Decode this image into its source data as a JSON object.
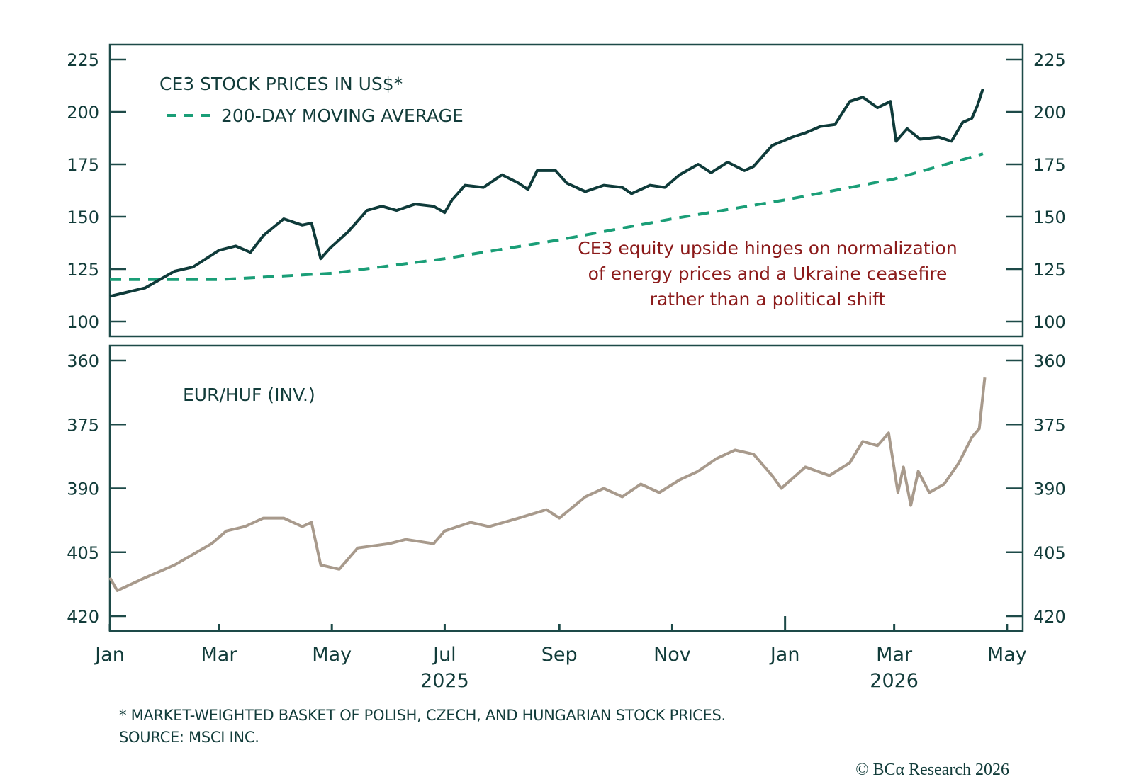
{
  "chart_data": [
    {
      "type": "line",
      "panel": "top",
      "title": "CE3 STOCK PRICES IN US$*",
      "legend": [
        {
          "name": "CE3 STOCK PRICES IN US$*",
          "style": "solid",
          "color": "#0f3b3a"
        },
        {
          "name": "200-DAY MOVING AVERAGE",
          "style": "dashed",
          "color": "#1a9e77"
        }
      ],
      "legend_position": "top-left",
      "ylim": [
        100,
        225
      ],
      "yticks": [
        "225",
        "200",
        "175",
        "150",
        "125",
        "100"
      ],
      "ytick_values": [
        225,
        200,
        175,
        150,
        125,
        100
      ],
      "x_unit": "days since 2025-01-01",
      "series": [
        {
          "name": "CE3 STOCK PRICES IN US$",
          "color": "#0f3b3a",
          "x": [
            0,
            19,
            35,
            45,
            59,
            68,
            76,
            83,
            94,
            104,
            109,
            114,
            119,
            129,
            139,
            147,
            155,
            165,
            175,
            181,
            185,
            192,
            202,
            212,
            221,
            226,
            231,
            241,
            247,
            257,
            267,
            277,
            282,
            292,
            300,
            308,
            318,
            325,
            334,
            343,
            348,
            358,
            369,
            376,
            384,
            392,
            400,
            407,
            415,
            422,
            425,
            431,
            438,
            448,
            455,
            461,
            466,
            469,
            472
          ],
          "values": [
            112,
            116,
            124,
            126,
            134,
            136,
            133,
            141,
            149,
            146,
            147,
            130,
            135,
            143,
            153,
            155,
            153,
            156,
            155,
            152,
            158,
            165,
            164,
            170,
            166,
            163,
            172,
            172,
            166,
            162,
            165,
            164,
            161,
            165,
            164,
            170,
            175,
            171,
            176,
            172,
            174,
            184,
            188,
            190,
            193,
            194,
            205,
            207,
            202,
            205,
            186,
            192,
            187,
            188,
            186,
            195,
            197,
            203,
            211
          ]
        },
        {
          "name": "200-DAY MOVING AVERAGE",
          "color": "#1a9e77",
          "style": "dashed",
          "x": [
            0,
            59,
            120,
            181,
            243,
            304,
            365,
            424,
            472
          ],
          "values": [
            120,
            120,
            123,
            130,
            139,
            149,
            158,
            168,
            180
          ]
        }
      ],
      "annotation": [
        "CE3 equity upside hinges on normalization",
        "of energy prices and a Ukraine ceasefire",
        "rather than a political shift"
      ]
    },
    {
      "type": "line",
      "panel": "bottom",
      "title": "EUR/HUF (INV.)",
      "ylim": [
        360,
        420
      ],
      "inverted": true,
      "yticks": [
        "360",
        "375",
        "390",
        "405",
        "420"
      ],
      "ytick_values": [
        360,
        375,
        390,
        405,
        420
      ],
      "x_unit": "days since 2025-01-01",
      "series": [
        {
          "name": "EUR/HUF (INV.)",
          "color": "#a89a8c",
          "x": [
            0,
            4,
            19,
            35,
            55,
            63,
            73,
            83,
            94,
            104,
            109,
            114,
            124,
            134,
            151,
            160,
            175,
            181,
            195,
            205,
            221,
            236,
            243,
            257,
            267,
            277,
            287,
            297,
            308,
            318,
            328,
            338,
            348,
            358,
            363,
            376,
            389,
            400,
            407,
            415,
            421,
            426,
            429,
            433,
            437,
            443,
            451,
            459,
            466,
            470,
            473
          ],
          "values": [
            411,
            414,
            411,
            408,
            403,
            400,
            399,
            397,
            397,
            399,
            398,
            408,
            409,
            404,
            403,
            402,
            403,
            400,
            398,
            399,
            397,
            395,
            397,
            392,
            390,
            392,
            389,
            391,
            388,
            386,
            383,
            381,
            382,
            387,
            390,
            385,
            387,
            384,
            379,
            380,
            377,
            391,
            385,
            394,
            386,
            391,
            389,
            384,
            378,
            376,
            364
          ]
        }
      ]
    }
  ],
  "xaxis": {
    "months": [
      {
        "label": "Jan",
        "day": 0
      },
      {
        "label": "Mar",
        "day": 59
      },
      {
        "label": "May",
        "day": 120
      },
      {
        "label": "Jul",
        "day": 181
      },
      {
        "label": "Sep",
        "day": 243
      },
      {
        "label": "Nov",
        "day": 304
      },
      {
        "label": "Jan",
        "day": 365
      },
      {
        "label": "Mar",
        "day": 424
      },
      {
        "label": "May",
        "day": 485
      }
    ],
    "years": [
      {
        "label": "2025",
        "day": 181
      },
      {
        "label": "2026",
        "day": 424
      }
    ]
  },
  "footnotes": {
    "note": "* MARKET-WEIGHTED BASKET OF POLISH, CZECH, AND HUNGARIAN STOCK PRICES.",
    "source": "SOURCE: MSCI INC."
  },
  "credit": "© BCα Research 2026",
  "colors": {
    "frame": "#1d4a48",
    "stock": "#0f3b3a",
    "moving_average": "#1a9e77",
    "huf": "#a89a8c",
    "annotation": "#8b1a1a"
  }
}
